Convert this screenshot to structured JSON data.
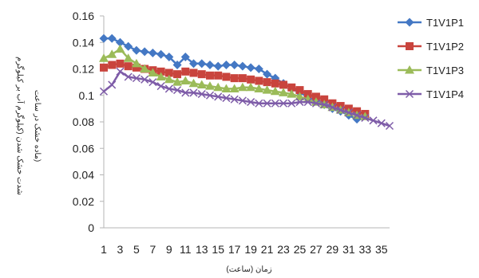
{
  "chart_data": {
    "type": "line",
    "title": "",
    "xlabel": "زمان (ساعت)",
    "ylabel_lines": [
      "شدت خشک شدن (کیلوگرم آب بر کیلوگرم",
      "ماده خشک در ساعت)"
    ],
    "ylim": [
      0,
      0.16
    ],
    "y_ticks": [
      0,
      0.02,
      0.04,
      0.06,
      0.08,
      0.1,
      0.12,
      0.14,
      0.16
    ],
    "y_tick_labels": [
      "0",
      "0.02",
      "0.04",
      "0.06",
      "0.08",
      "0.1",
      "0.12",
      "0.14",
      "0.16"
    ],
    "x_ticks": [
      1,
      3,
      5,
      7,
      9,
      11,
      13,
      15,
      17,
      19,
      21,
      23,
      25,
      27,
      29,
      31,
      33,
      35
    ],
    "x_tick_labels": [
      "1",
      "3",
      "5",
      "7",
      "9",
      "11",
      "13",
      "15",
      "17",
      "19",
      "21",
      "23",
      "25",
      "27",
      "29",
      "31",
      "33",
      "35"
    ],
    "xlim": [
      1,
      36
    ],
    "grid": false,
    "legend_position": "right",
    "series": [
      {
        "name": "T1V1P1",
        "color": "#4478C4",
        "marker": "diamond",
        "x": [
          1,
          2,
          3,
          4,
          5,
          6,
          7,
          8,
          9,
          10,
          11,
          12,
          13,
          14,
          15,
          16,
          17,
          18,
          19,
          20,
          21,
          22,
          23,
          24,
          25,
          26,
          27,
          28,
          29,
          30,
          31,
          32
        ],
        "values": [
          0.143,
          0.143,
          0.14,
          0.137,
          0.134,
          0.133,
          0.132,
          0.131,
          0.129,
          0.123,
          0.129,
          0.124,
          0.124,
          0.123,
          0.122,
          0.123,
          0.123,
          0.122,
          0.121,
          0.12,
          0.116,
          0.113,
          0.109,
          0.105,
          0.102,
          0.099,
          0.096,
          0.093,
          0.09,
          0.088,
          0.085,
          0.082
        ]
      },
      {
        "name": "T1V1P2",
        "color": "#C9443D",
        "marker": "square",
        "x": [
          1,
          2,
          3,
          4,
          5,
          6,
          7,
          8,
          9,
          10,
          11,
          12,
          13,
          14,
          15,
          16,
          17,
          18,
          19,
          20,
          21,
          22,
          23,
          24,
          25,
          26,
          27,
          28,
          29,
          30,
          31,
          32,
          33
        ],
        "values": [
          0.121,
          0.123,
          0.124,
          0.122,
          0.121,
          0.12,
          0.119,
          0.118,
          0.117,
          0.116,
          0.118,
          0.117,
          0.116,
          0.115,
          0.115,
          0.114,
          0.113,
          0.113,
          0.112,
          0.111,
          0.11,
          0.109,
          0.108,
          0.106,
          0.104,
          0.101,
          0.099,
          0.097,
          0.094,
          0.092,
          0.09,
          0.088,
          0.086
        ]
      },
      {
        "name": "T1V1P3",
        "color": "#9BBB59",
        "marker": "triangle",
        "x": [
          1,
          2,
          3,
          4,
          5,
          6,
          7,
          8,
          9,
          10,
          11,
          12,
          13,
          14,
          15,
          16,
          17,
          18,
          19,
          20,
          21,
          22,
          23,
          24,
          25,
          26,
          27,
          28,
          29,
          30,
          31,
          32,
          33
        ],
        "values": [
          0.128,
          0.131,
          0.135,
          0.128,
          0.124,
          0.12,
          0.117,
          0.114,
          0.112,
          0.11,
          0.111,
          0.109,
          0.108,
          0.107,
          0.106,
          0.105,
          0.105,
          0.106,
          0.106,
          0.105,
          0.104,
          0.103,
          0.102,
          0.101,
          0.099,
          0.097,
          0.095,
          0.093,
          0.091,
          0.089,
          0.087,
          0.085,
          0.084
        ]
      },
      {
        "name": "T1V1P4",
        "color": "#7E5CA8",
        "marker": "x",
        "x": [
          1,
          2,
          3,
          4,
          5,
          6,
          7,
          8,
          9,
          10,
          11,
          12,
          13,
          14,
          15,
          16,
          17,
          18,
          19,
          20,
          21,
          22,
          23,
          24,
          25,
          26,
          27,
          28,
          29,
          30,
          31,
          32,
          33,
          34,
          35,
          36
        ],
        "values": [
          0.103,
          0.108,
          0.118,
          0.114,
          0.113,
          0.112,
          0.11,
          0.107,
          0.105,
          0.104,
          0.102,
          0.102,
          0.101,
          0.1,
          0.099,
          0.098,
          0.097,
          0.096,
          0.095,
          0.094,
          0.094,
          0.094,
          0.094,
          0.094,
          0.095,
          0.095,
          0.094,
          0.093,
          0.091,
          0.089,
          0.087,
          0.085,
          0.083,
          0.081,
          0.079,
          0.077
        ]
      }
    ]
  }
}
